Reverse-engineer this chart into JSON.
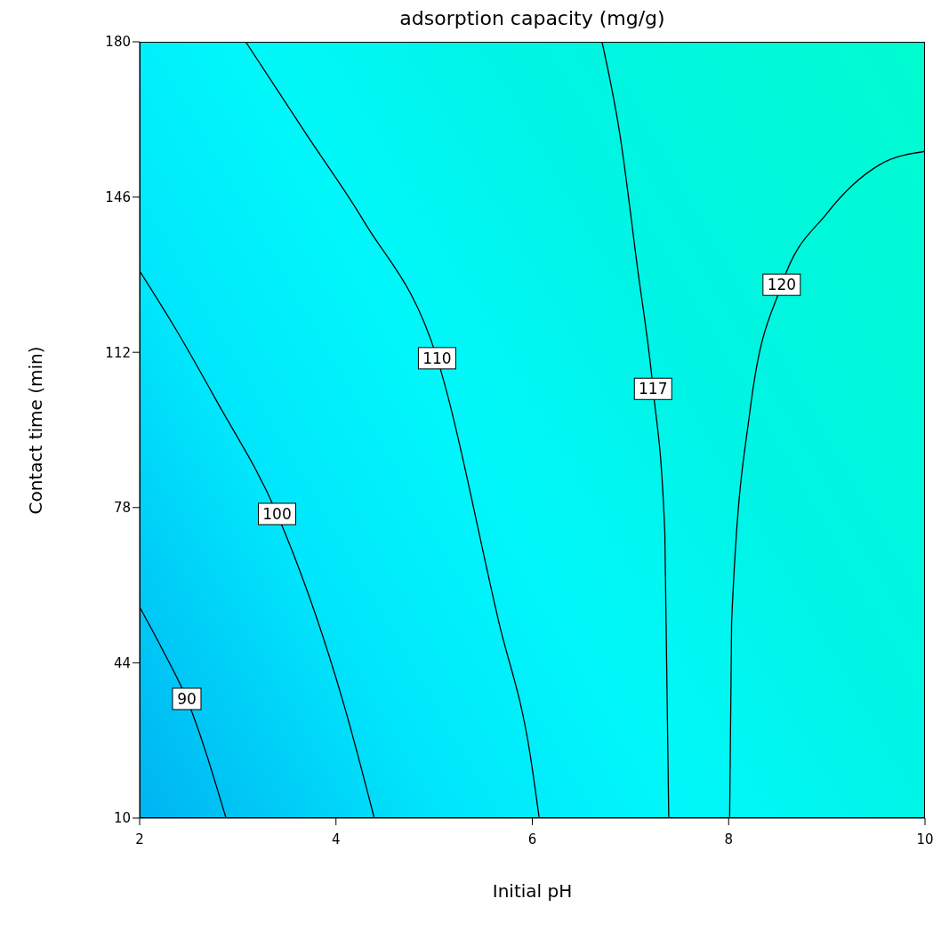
{
  "chart_data": {
    "type": "line",
    "title": "adsorption capacity (mg/g)",
    "xlabel": "Initial pH",
    "ylabel": "Contact time (min)",
    "xlim": [
      2,
      10
    ],
    "xticks": [
      2,
      4,
      6,
      8,
      10
    ],
    "ylim": [
      10,
      180
    ],
    "yticks": [
      10,
      44,
      78,
      112,
      146,
      180
    ],
    "grid": false,
    "legend": false,
    "marker": "none",
    "line_style": "solid",
    "series": [
      {
        "name": "90",
        "color": "#000000",
        "x": [
          2.0,
          2.23,
          2.48,
          2.88
        ],
        "values": [
          56.2,
          47,
          36.1,
          10
        ]
      },
      {
        "name": "100",
        "color": "#000000",
        "x": [
          2.0,
          2.37,
          2.78,
          3.4,
          4.1,
          4.39
        ],
        "values": [
          129.8,
          117,
          101.5,
          76.6,
          33.4,
          10
        ]
      },
      {
        "name": "110",
        "color": "#000000",
        "x": [
          3.08,
          3.69,
          4.29,
          5.03,
          5.66,
          5.98,
          6.07
        ],
        "values": [
          180,
          160,
          140.5,
          110.7,
          52.8,
          23.6,
          10
        ]
      },
      {
        "name": "117",
        "color": "#000000",
        "x": [
          6.71,
          6.89,
          7.07,
          7.23,
          7.35,
          7.39
        ],
        "values": [
          180,
          160,
          130.7,
          104,
          72.3,
          10
        ]
      },
      {
        "name": "120",
        "color": "#000000",
        "x": [
          8.01,
          8.03,
          8.22,
          8.54,
          9.0,
          9.54,
          10
        ],
        "values": [
          10,
          52.8,
          99.6,
          126.8,
          142.4,
          153.1,
          156
        ]
      }
    ]
  }
}
